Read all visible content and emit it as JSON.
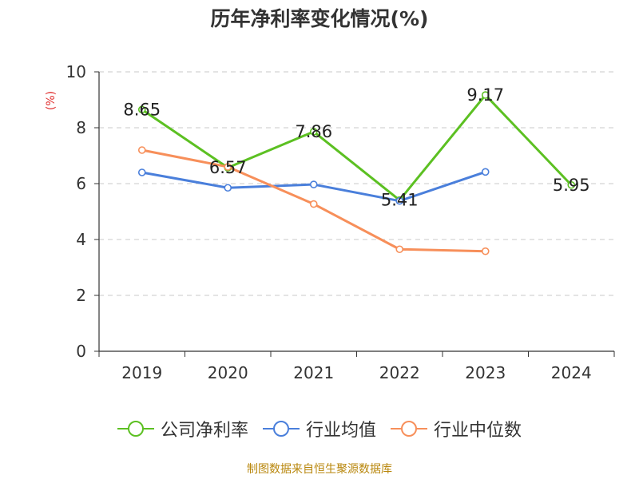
{
  "title": "历年净利率变化情况(%)",
  "source": "制图数据来自恒生聚源数据库",
  "chart_data": {
    "type": "line",
    "title": "历年净利率变化情况(%)",
    "ylabel": "(%)",
    "ylim": [
      0,
      10
    ],
    "yticks": [
      0,
      2,
      4,
      6,
      8,
      10
    ],
    "categories": [
      "2019",
      "2020",
      "2021",
      "2022",
      "2023",
      "2024"
    ],
    "grid": true,
    "legend_position": "bottom",
    "series": [
      {
        "name": "公司净利率",
        "color": "#5cc022",
        "values": [
          8.65,
          6.57,
          7.86,
          5.41,
          9.17,
          5.95
        ],
        "labels": [
          "8.65",
          "6.57",
          "7.86",
          "5.41",
          "9.17",
          "5.95"
        ]
      },
      {
        "name": "行业均值",
        "color": "#4a7fdb",
        "values": [
          6.4,
          5.85,
          5.97,
          5.38,
          6.42,
          null
        ]
      },
      {
        "name": "行业中位数",
        "color": "#f78f5a",
        "values": [
          7.2,
          6.6,
          5.27,
          3.65,
          3.58,
          null
        ]
      }
    ]
  }
}
